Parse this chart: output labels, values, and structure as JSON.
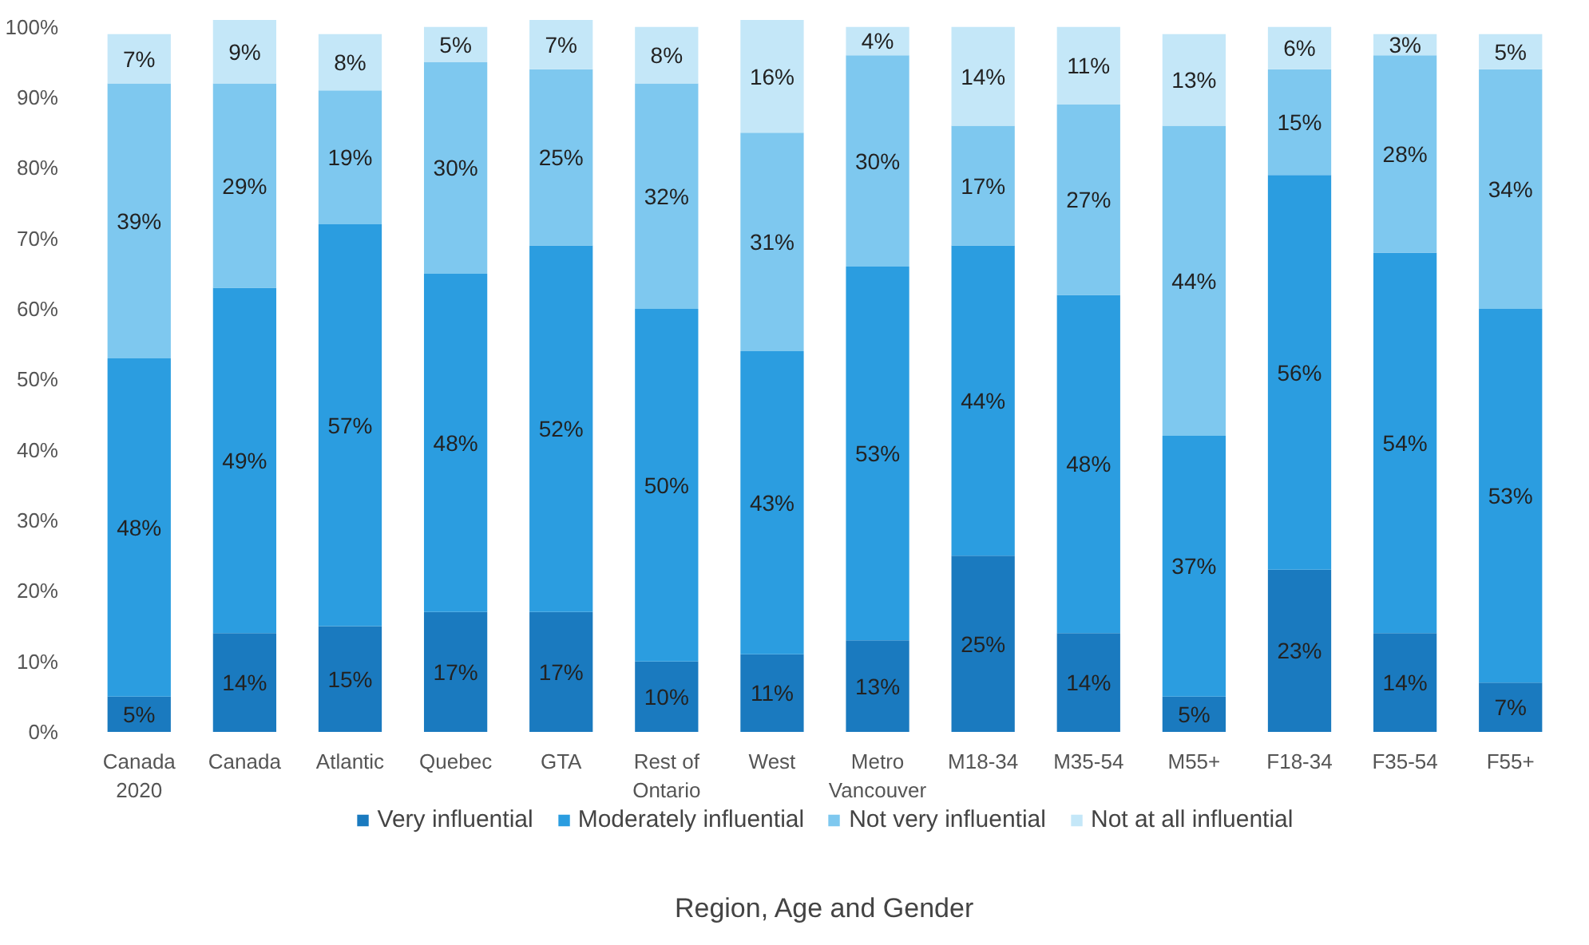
{
  "chart_data": {
    "type": "bar",
    "stacked": true,
    "xlabel": "Region, Age and Gender",
    "categories": [
      "Canada\n2020",
      "Canada",
      "Atlantic",
      "Quebec",
      "GTA",
      "Rest of\nOntario",
      "West",
      "Metro\nVancouver",
      "M18-34",
      "M35-54",
      "M55+",
      "F18-34",
      "F35-54",
      "F55+"
    ],
    "ylim": [
      0,
      101
    ],
    "yticks": [
      {
        "value": 0,
        "label": "0%"
      },
      {
        "value": 10,
        "label": "10%"
      },
      {
        "value": 20,
        "label": "20%"
      },
      {
        "value": 30,
        "label": "30%"
      },
      {
        "value": 40,
        "label": "40%"
      },
      {
        "value": 50,
        "label": "50%"
      },
      {
        "value": 60,
        "label": "60%"
      },
      {
        "value": 70,
        "label": "70%"
      },
      {
        "value": 80,
        "label": "80%"
      },
      {
        "value": 90,
        "label": "90%"
      },
      {
        "value": 100,
        "label": "100%"
      }
    ],
    "grid": false,
    "legend": "bottom",
    "series": [
      {
        "name": "Very influential",
        "color": "#1a7abf",
        "values": [
          5,
          14,
          15,
          17,
          17,
          10,
          11,
          13,
          25,
          14,
          5,
          23,
          14,
          7
        ],
        "value_labels": [
          "5%",
          "14%",
          "15%",
          "17%",
          "17%",
          "10%",
          "11%",
          "13%",
          "25%",
          "14%",
          "5%",
          "23%",
          "14%",
          "7%"
        ]
      },
      {
        "name": "Moderately influential",
        "color": "#2b9de0",
        "values": [
          48,
          49,
          57,
          48,
          52,
          50,
          43,
          53,
          44,
          48,
          37,
          56,
          54,
          53
        ],
        "value_labels": [
          "48%",
          "49%",
          "57%",
          "48%",
          "52%",
          "50%",
          "43%",
          "53%",
          "44%",
          "48%",
          "37%",
          "56%",
          "54%",
          "53%"
        ]
      },
      {
        "name": "Not very influential",
        "color": "#7ec8ef",
        "values": [
          39,
          29,
          19,
          30,
          25,
          32,
          31,
          30,
          17,
          27,
          44,
          15,
          28,
          34
        ],
        "value_labels": [
          "39%",
          "29%",
          "19%",
          "30%",
          "25%",
          "32%",
          "31%",
          "30%",
          "17%",
          "27%",
          "44%",
          "15%",
          "28%",
          "34%"
        ]
      },
      {
        "name": "Not at all influential",
        "color": "#c4e7f8",
        "values": [
          7,
          9,
          8,
          5,
          7,
          8,
          16,
          4,
          14,
          11,
          13,
          6,
          3,
          5
        ],
        "value_labels": [
          "7%",
          "9%",
          "8%",
          "5%",
          "7%",
          "8%",
          "16%",
          "4%",
          "14%",
          "11%",
          "13%",
          "6%",
          "3%",
          "5%"
        ]
      }
    ]
  }
}
